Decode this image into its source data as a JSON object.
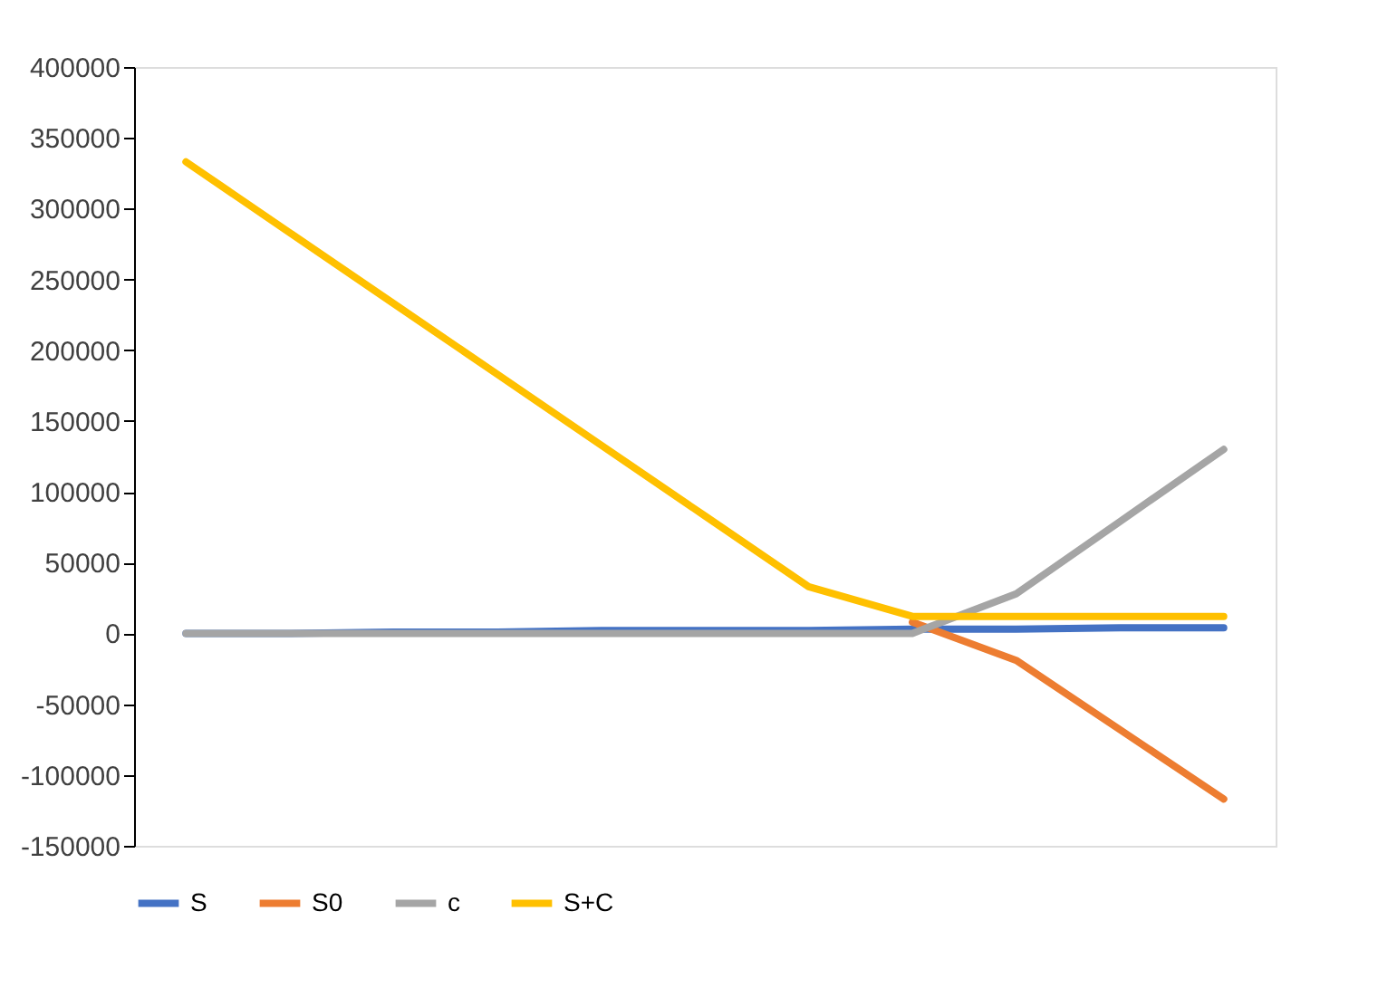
{
  "chart_data": {
    "type": "line",
    "categories": [
      null,
      null,
      null,
      null,
      null,
      null,
      null,
      null,
      null,
      null,
      null
    ],
    "series": [
      {
        "name": "S",
        "color": "#4472c4",
        "values": [
          0,
          0,
          1000,
          1000,
          2000,
          2000,
          2000,
          3000,
          3000,
          4000,
          4000
        ]
      },
      {
        "name": "S0",
        "color": "#ed7d31",
        "values": [
          null,
          null,
          null,
          null,
          null,
          null,
          null,
          8000,
          -19000,
          -68000,
          -117000
        ]
      },
      {
        "name": "c",
        "color": "#a5a5a5",
        "values": [
          0,
          0,
          0,
          0,
          0,
          0,
          0,
          0,
          28000,
          79000,
          130000
        ]
      },
      {
        "name": "S+C",
        "color": "#ffc000",
        "values": [
          333000,
          283000,
          233000,
          183000,
          133000,
          83000,
          33000,
          12000,
          12000,
          12000,
          12000
        ]
      }
    ],
    "ylim": [
      -150000,
      400000
    ],
    "yticks": [
      -150000,
      -100000,
      -50000,
      0,
      50000,
      100000,
      150000,
      200000,
      250000,
      300000,
      350000,
      400000
    ],
    "tick_labels": "y",
    "grid": false,
    "legend": "bottom",
    "marker": "none",
    "line_style": "solid"
  }
}
